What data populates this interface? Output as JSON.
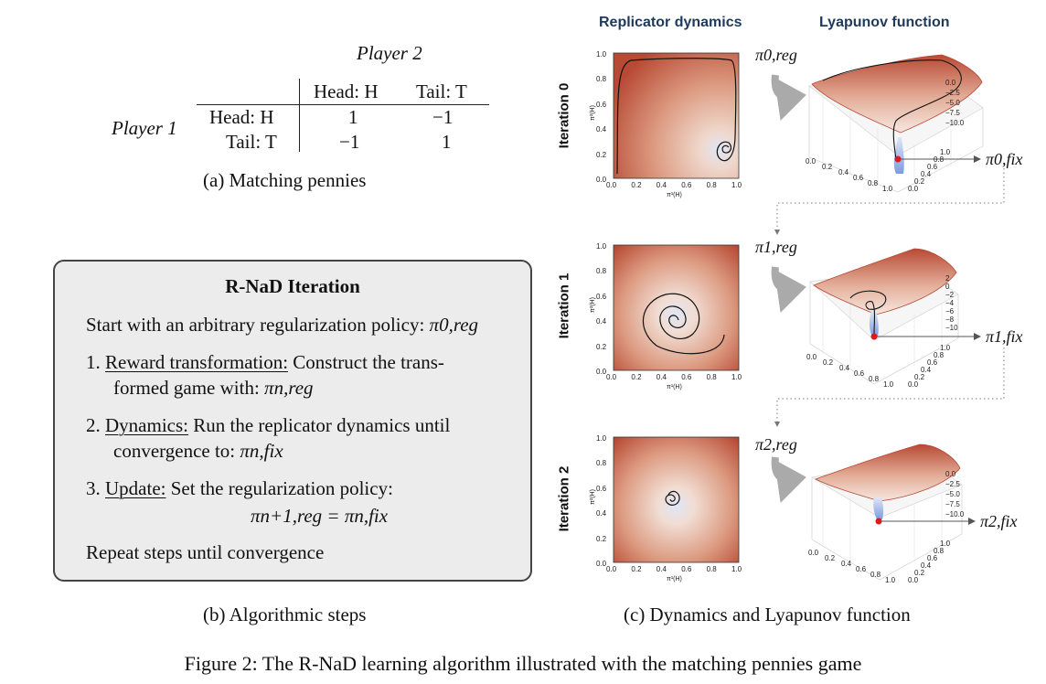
{
  "payoff": {
    "player2": "Player 2",
    "player1": "Player 1",
    "col_headers": [
      "Head: H",
      "Tail: T"
    ],
    "row_headers": [
      "Head: H",
      "Tail: T"
    ],
    "cells": [
      [
        "1",
        "−1"
      ],
      [
        "−1",
        "1"
      ]
    ],
    "caption": "(a) Matching pennies"
  },
  "algorithm": {
    "title": "R-NaD Iteration",
    "start": "Start with an arbitrary regularization policy:",
    "start_sym": "π0,reg",
    "step1_num": "1.",
    "step1_head": "Reward transformation:",
    "step1_rest": "Construct the trans-",
    "step1_line2": "formed game with:",
    "step1_sym": "πn,reg",
    "step2_num": "2.",
    "step2_head": "Dynamics:",
    "step2_rest": "Run the replicator dynamics until",
    "step2_line2": "convergence to:",
    "step2_sym": "πn,fix",
    "step3_num": "3.",
    "step3_head": "Update:",
    "step3_rest": "Set the regularization policy:",
    "step3_eq": "πn+1,reg = πn,fix",
    "repeat": "Repeat steps until convergence",
    "caption": "(b) Algorithmic steps"
  },
  "dynamics": {
    "col_titles": [
      "Replicator dynamics",
      "Lyapunov function"
    ],
    "iterations": [
      "Iteration 0",
      "Iteration 1",
      "Iteration 2"
    ],
    "pi_reg": [
      "π0,reg",
      "π1,reg",
      "π2,reg"
    ],
    "pi_fix": [
      "π0,fix",
      "π1,fix",
      "π2,fix"
    ],
    "x_axis_label": "π¹(H)",
    "y_axis_label": "π²(H)",
    "ticks": [
      "0.0",
      "0.2",
      "0.4",
      "0.6",
      "0.8",
      "1.0"
    ],
    "z_ticks": [
      [
        "0.0",
        "−2.5",
        "−5.0",
        "−7.5",
        "−10.0"
      ],
      [
        "2",
        "0",
        "−2",
        "−4",
        "−6",
        "−8",
        "−10"
      ],
      [
        "0.0",
        "−2.5",
        "−5.0",
        "−7.5",
        "−10.0"
      ]
    ],
    "caption": "(c) Dynamics and Lyapunov function"
  },
  "figure_caption": "Figure 2: The R-NaD learning algorithm illustrated with the matching pennies game",
  "colors": {
    "dark_red": "#b84a35",
    "light_center": "#dfe6f5",
    "blue": "#2a4fb0",
    "fix_point": "#e01818",
    "arrow_gray": "#aaaaaa"
  }
}
